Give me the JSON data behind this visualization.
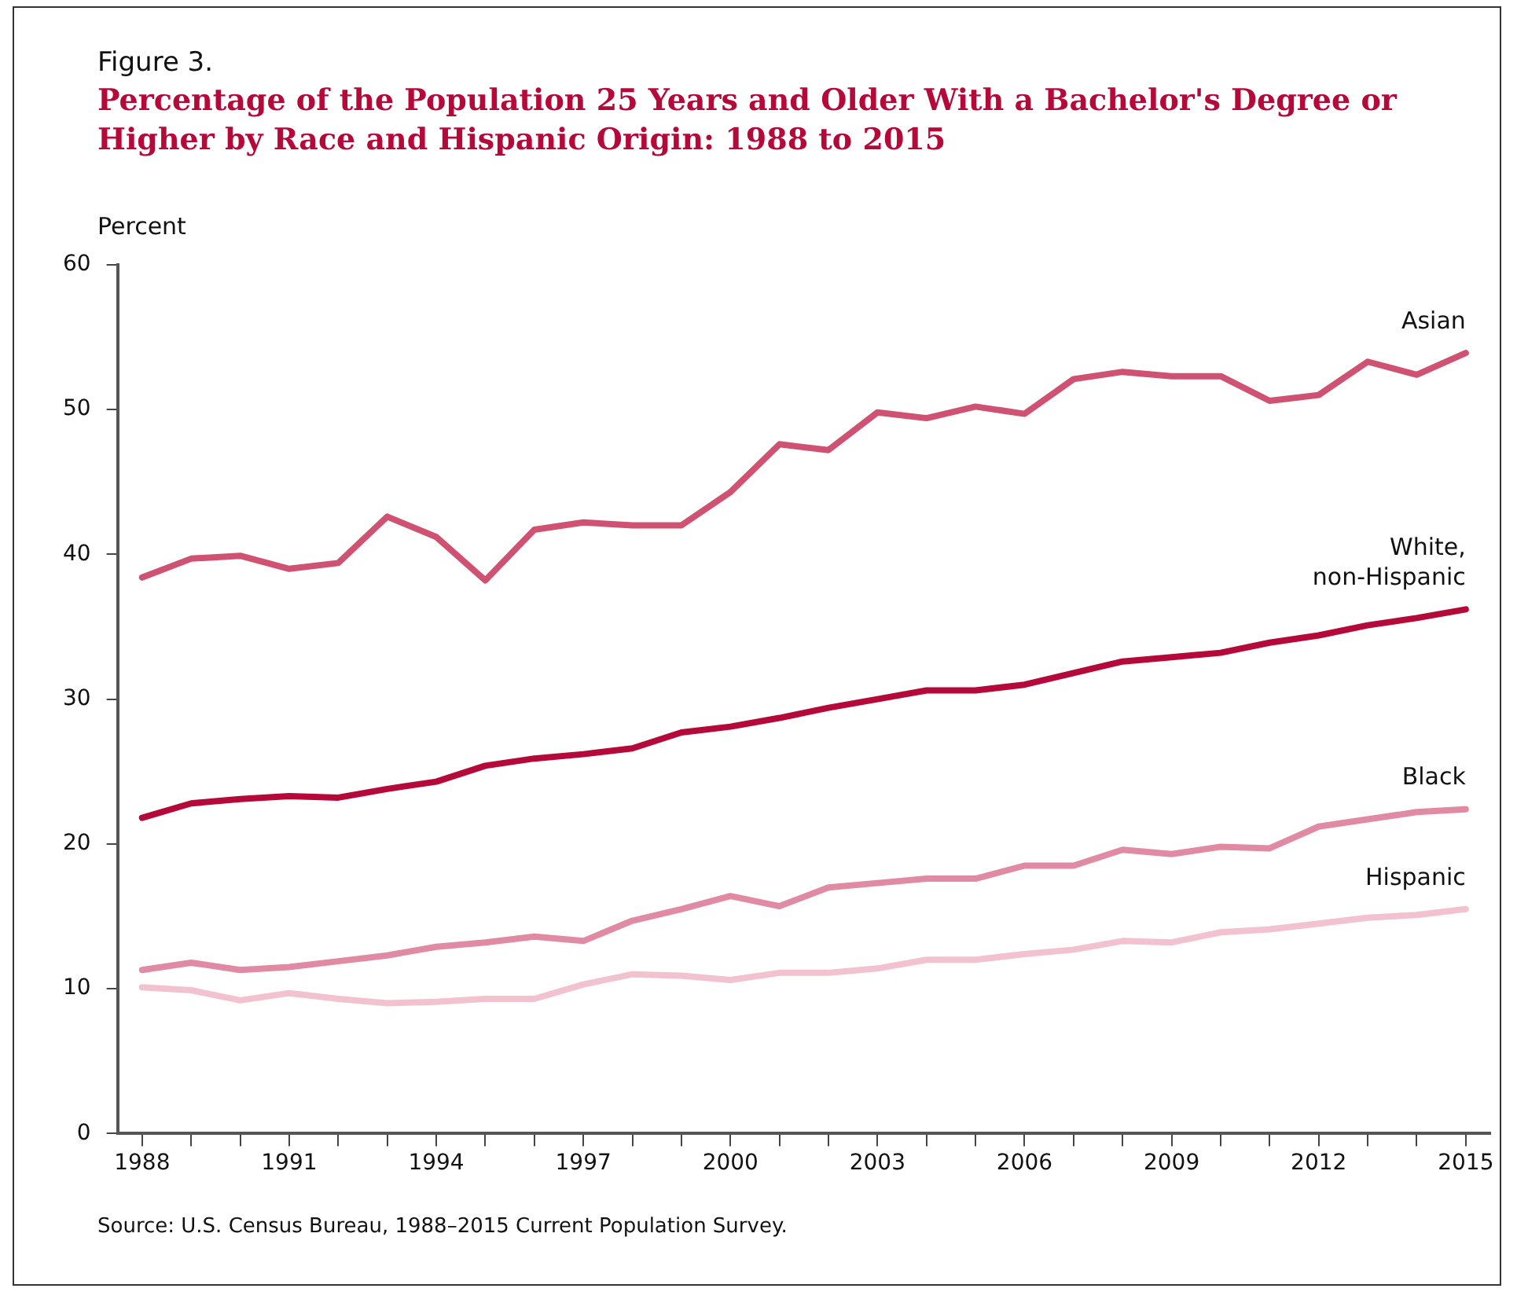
{
  "chart_data": {
    "type": "line",
    "title": "Figure 3.",
    "subtitle": "Percentage of the Population 25 Years and Older With a Bachelor's Degree or Higher by Race and Hispanic Origin: 1988 to 2015",
    "ylabel": "Percent",
    "annotations": [
      "Source: U.S. Census Bureau, 1988–2015 Current Population Survey."
    ],
    "x": [
      1988,
      1989,
      1990,
      1991,
      1992,
      1993,
      1994,
      1995,
      1996,
      1997,
      1998,
      1999,
      2000,
      2001,
      2002,
      2003,
      2004,
      2005,
      2006,
      2007,
      2008,
      2009,
      2010,
      2011,
      2012,
      2013,
      2014,
      2015
    ],
    "series": [
      {
        "name": "Asian",
        "color": "#cf5272",
        "values": [
          38.4,
          39.7,
          39.9,
          39.0,
          39.4,
          42.6,
          41.2,
          38.2,
          41.7,
          42.2,
          42.0,
          42.0,
          44.3,
          47.6,
          47.2,
          49.8,
          49.4,
          50.2,
          49.7,
          52.1,
          52.6,
          52.3,
          52.3,
          50.6,
          51.0,
          53.3,
          52.4,
          53.9
        ]
      },
      {
        "name": "White, non-Hispanic",
        "color": "#b5093a",
        "values": [
          21.8,
          22.8,
          23.1,
          23.3,
          23.2,
          23.8,
          24.3,
          25.4,
          25.9,
          26.2,
          26.6,
          27.7,
          28.1,
          28.7,
          29.4,
          30.0,
          30.6,
          30.6,
          31.0,
          31.8,
          32.6,
          32.9,
          33.2,
          33.9,
          34.4,
          35.1,
          35.6,
          36.2
        ]
      },
      {
        "name": "Black",
        "color": "#e08aa4",
        "values": [
          11.3,
          11.8,
          11.3,
          11.5,
          11.9,
          12.3,
          12.9,
          13.2,
          13.6,
          13.3,
          14.7,
          15.5,
          16.4,
          15.7,
          17.0,
          17.3,
          17.6,
          17.6,
          18.5,
          18.5,
          19.6,
          19.3,
          19.8,
          19.7,
          21.2,
          21.7,
          22.2,
          22.4
        ]
      },
      {
        "name": "Hispanic",
        "color": "#f2c2d0",
        "values": [
          10.1,
          9.9,
          9.2,
          9.7,
          9.3,
          9.0,
          9.1,
          9.3,
          9.3,
          10.3,
          11.0,
          10.9,
          10.6,
          11.1,
          11.1,
          11.4,
          12.0,
          12.0,
          12.4,
          12.7,
          13.3,
          13.2,
          13.9,
          14.1,
          14.5,
          14.9,
          15.1,
          15.5
        ]
      }
    ],
    "xlim": [
      1987.5,
      2015.5
    ],
    "xticks": [
      1988,
      {
        "value": 1989,
        "label": null
      },
      {
        "value": 1990,
        "label": null
      },
      1991,
      {
        "value": 1992,
        "label": null
      },
      {
        "value": 1993,
        "label": null
      },
      1994,
      {
        "value": 1995,
        "label": null
      },
      {
        "value": 1996,
        "label": null
      },
      1997,
      {
        "value": 1998,
        "label": null
      },
      {
        "value": 1999,
        "label": null
      },
      2000,
      {
        "value": 2001,
        "label": null
      },
      {
        "value": 2002,
        "label": null
      },
      2003,
      {
        "value": 2004,
        "label": null
      },
      {
        "value": 2005,
        "label": null
      },
      2006,
      {
        "value": 2007,
        "label": null
      },
      {
        "value": 2008,
        "label": null
      },
      2009,
      {
        "value": 2010,
        "label": null
      },
      {
        "value": 2011,
        "label": null
      },
      2012,
      {
        "value": 2013,
        "label": null
      },
      {
        "value": 2014,
        "label": null
      },
      2015
    ],
    "ylim": [
      0,
      60
    ],
    "yticks": [
      0,
      10,
      20,
      30,
      40,
      50,
      60
    ],
    "grid": false,
    "legend": false,
    "marker": "none",
    "line_style": "solid"
  }
}
